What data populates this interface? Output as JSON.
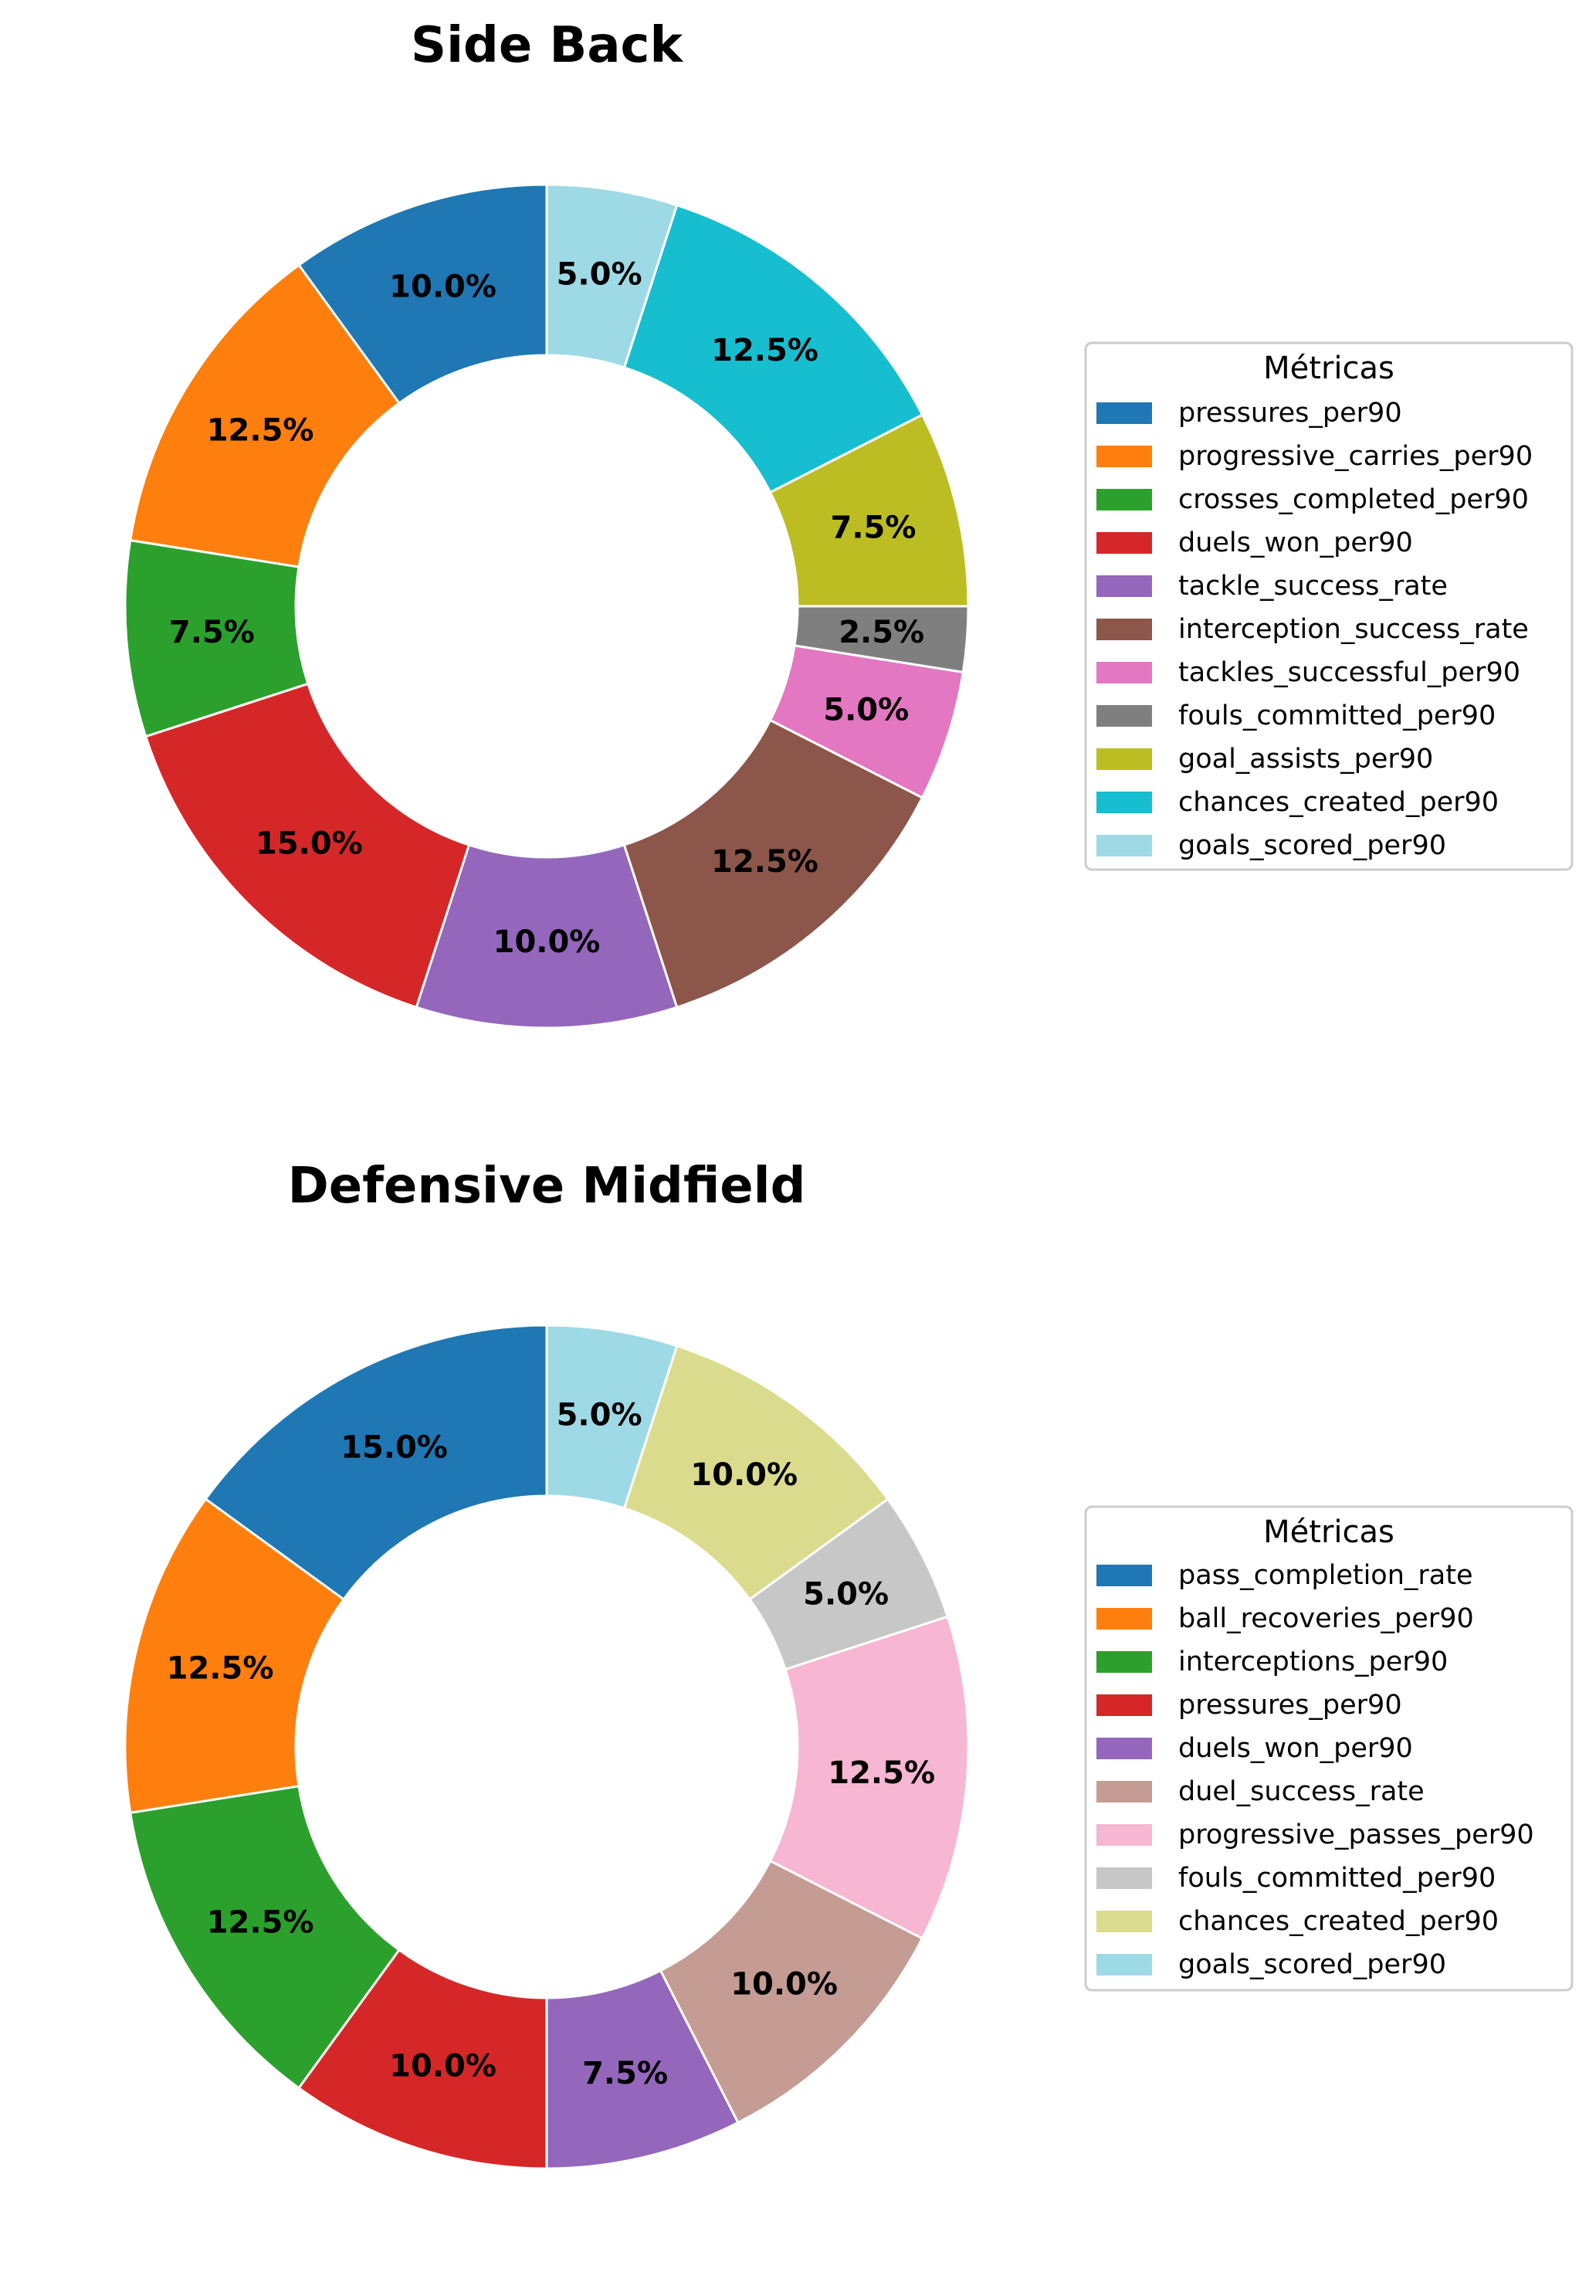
{
  "chart_data": [
    {
      "type": "pie",
      "title": "Side Back",
      "donut": true,
      "start": "top",
      "direction": "counterclockwise",
      "label_format": "percent",
      "legend_title": "Métricas",
      "legend_position": "right",
      "categories": [
        "pressures_per90",
        "progressive_carries_per90",
        "crosses_completed_per90",
        "duels_won_per90",
        "tackle_success_rate",
        "interception_success_rate",
        "tackles_successful_per90",
        "fouls_committed_per90",
        "goal_assists_per90",
        "chances_created_per90",
        "goals_scored_per90"
      ],
      "values": [
        10.0,
        12.5,
        7.5,
        15.0,
        10.0,
        12.5,
        5.0,
        2.5,
        7.5,
        12.5,
        5.0
      ],
      "labels": [
        "10.0%",
        "12.5%",
        "7.5%",
        "15.0%",
        "10.0%",
        "12.5%",
        "5.0%",
        "2.5%",
        "7.5%",
        "12.5%",
        "5.0%"
      ],
      "colors": [
        "#1f77b4",
        "#ff7f0e",
        "#2ca02c",
        "#d62728",
        "#9467bd",
        "#8c564b",
        "#e377c2",
        "#7f7f7f",
        "#bcbd22",
        "#17becf",
        "#9edae5"
      ]
    },
    {
      "type": "pie",
      "title": "Defensive Midfield",
      "donut": true,
      "start": "top",
      "direction": "counterclockwise",
      "label_format": "percent",
      "legend_title": "Métricas",
      "legend_position": "right",
      "categories": [
        "pass_completion_rate",
        "ball_recoveries_per90",
        "interceptions_per90",
        "pressures_per90",
        "duels_won_per90",
        "duel_success_rate",
        "progressive_passes_per90",
        "fouls_committed_per90",
        "chances_created_per90",
        "goals_scored_per90"
      ],
      "values": [
        15.0,
        12.5,
        12.5,
        10.0,
        7.5,
        10.0,
        12.5,
        5.0,
        10.0,
        5.0
      ],
      "labels": [
        "15.0%",
        "12.5%",
        "12.5%",
        "10.0%",
        "7.5%",
        "10.0%",
        "12.5%",
        "5.0%",
        "10.0%",
        "5.0%"
      ],
      "colors": [
        "#1f77b4",
        "#ff7f0e",
        "#2ca02c",
        "#d62728",
        "#9467bd",
        "#c49c94",
        "#f7b6d2",
        "#c7c7c7",
        "#dbdb8d",
        "#9edae5"
      ]
    }
  ]
}
